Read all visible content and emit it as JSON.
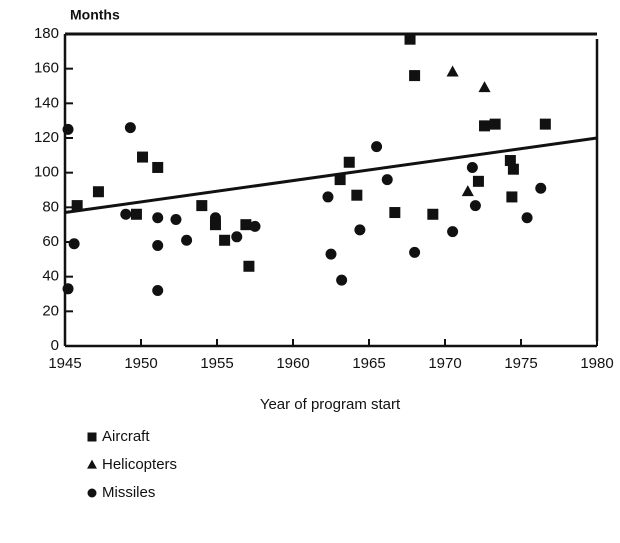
{
  "chart_data": {
    "type": "scatter",
    "y_label": "Months",
    "x_label": "Year of program start",
    "xlim": [
      1945,
      1980
    ],
    "xticks": [
      1945,
      1950,
      1955,
      1960,
      1965,
      1970,
      1975,
      1980
    ],
    "ylim": [
      0,
      180
    ],
    "yticks": [
      0,
      20,
      40,
      60,
      80,
      100,
      120,
      140,
      160,
      180
    ],
    "series": [
      {
        "name": "Aircraft",
        "marker": "square",
        "color": "#111111",
        "x": [
          1945.8,
          1947.2,
          1949.7,
          1950.1,
          1951.1,
          1954,
          1954.9,
          1955.5,
          1956.9,
          1957.1,
          1963.1,
          1963.7,
          1964.2,
          1966.7,
          1967.7,
          1968,
          1969.2,
          1972.2,
          1972.6,
          1973.3,
          1974.3,
          1974.4,
          1974.5,
          1976.6
        ],
        "values": [
          81,
          89,
          76,
          109,
          103,
          81,
          70,
          61,
          70,
          46,
          96,
          106,
          87,
          77,
          177,
          156,
          76,
          95,
          127,
          128,
          107,
          86,
          102,
          128
        ]
      },
      {
        "name": "Helicopters",
        "marker": "triangle",
        "color": "#111111",
        "x": [
          1970.5,
          1971.5,
          1972.6
        ],
        "values": [
          158,
          89,
          149
        ]
      },
      {
        "name": "Missiles",
        "marker": "circle",
        "color": "#111111",
        "x": [
          1945.2,
          1945.2,
          1945.6,
          1949.3,
          1949,
          1951.1,
          1951.1,
          1951.1,
          1952.3,
          1953,
          1954.9,
          1956.3,
          1957.5,
          1962.3,
          1962.5,
          1963.2,
          1964.4,
          1965.5,
          1966.2,
          1968,
          1970.5,
          1971.8,
          1972,
          1975.4,
          1976.3
        ],
        "values": [
          125,
          33,
          59,
          126,
          76,
          74,
          58,
          32,
          73,
          61,
          74,
          63,
          69,
          86,
          53,
          38,
          67,
          115,
          96,
          54,
          66,
          103,
          81,
          74,
          91
        ]
      }
    ],
    "trend_line": {
      "x": [
        1945,
        1980
      ],
      "values": [
        77,
        120
      ]
    }
  }
}
